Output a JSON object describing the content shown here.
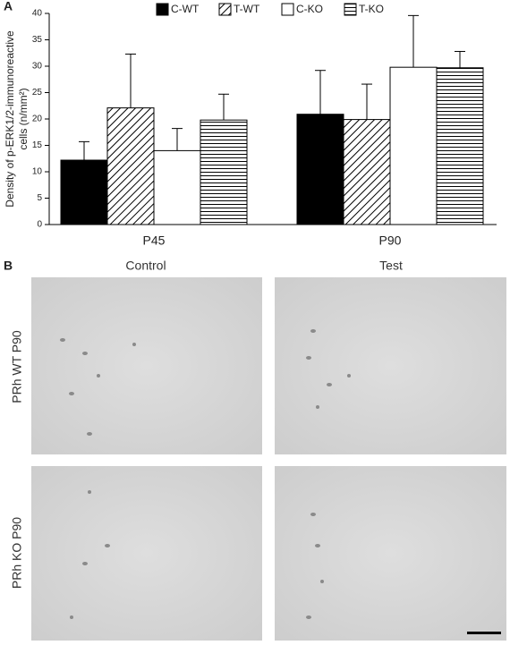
{
  "panel_labels": [
    "A",
    "B"
  ],
  "chart_data": {
    "type": "bar",
    "ylabel": [
      "Density of p-ERK1/2-immunoreactive",
      "cells (n/mm²)"
    ],
    "categories": [
      "P45",
      "P90"
    ],
    "series": [
      {
        "name": "C-WT",
        "color": "#000000",
        "hatch": null,
        "values": [
          12.2,
          20.9
        ],
        "errors": [
          3.5,
          8.3
        ]
      },
      {
        "name": "T-WT",
        "color": "#ffffff",
        "hatch": "diagonal",
        "values": [
          22.1,
          19.9
        ],
        "errors": [
          10.2,
          6.7
        ]
      },
      {
        "name": "C-KO",
        "color": "#ffffff",
        "hatch": null,
        "values": [
          14.0,
          29.8
        ],
        "errors": [
          4.2,
          9.8
        ]
      },
      {
        "name": "T-KO",
        "color": "#ffffff",
        "hatch": "horizontal",
        "values": [
          19.8,
          29.7
        ],
        "errors": [
          4.9,
          3.1
        ]
      }
    ],
    "ylim": [
      0,
      40
    ],
    "yticks": [
      0,
      5,
      10,
      15,
      20,
      25,
      30,
      35,
      40
    ]
  },
  "micrographs": {
    "columns": [
      "Control",
      "Test"
    ],
    "rows": [
      "PRh WT P90",
      "PRh KO P90"
    ]
  }
}
